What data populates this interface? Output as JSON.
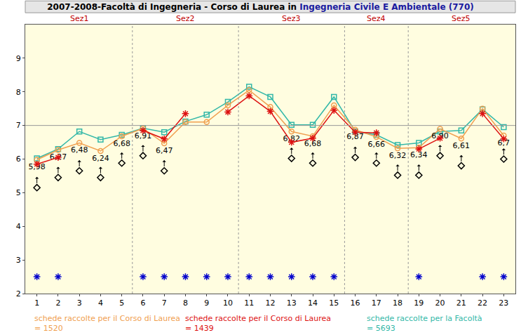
{
  "chart_data": {
    "type": "line",
    "title": "2007-2008-Facoltà di Ingegneria - Corso di Laurea in Ingegneria Civile E Ambientale (770)",
    "title_highlight": "Ingegneria Civile E Ambientale (770)",
    "x": [
      1,
      2,
      3,
      4,
      5,
      6,
      7,
      8,
      9,
      10,
      11,
      12,
      13,
      14,
      15,
      16,
      17,
      18,
      19,
      20,
      21,
      22,
      23
    ],
    "xlim": [
      0.45,
      23.55
    ],
    "xticks": [
      1,
      2,
      3,
      4,
      5,
      6,
      7,
      8,
      9,
      10,
      11,
      12,
      13,
      14,
      15,
      16,
      17,
      18,
      19,
      20,
      21,
      22,
      23
    ],
    "ylim": [
      2,
      10
    ],
    "yticks": [
      2,
      3,
      4,
      5,
      6,
      7,
      8,
      9
    ],
    "grid": false,
    "data_labels": true,
    "reference_line": 7,
    "sections": [
      {
        "label": "Sez1",
        "start": 1,
        "end": 5
      },
      {
        "label": "Sez2",
        "start": 6,
        "end": 10
      },
      {
        "label": "Sez3",
        "start": 11,
        "end": 15
      },
      {
        "label": "Sez4",
        "start": 16,
        "end": 18
      },
      {
        "label": "Sez5",
        "start": 19,
        "end": 23
      }
    ],
    "series": [
      {
        "name": "schede raccolte per la Facoltà = 5693",
        "color": "#33b8a8",
        "marker": "square",
        "line_style": "solid",
        "values": [
          6.02,
          6.3,
          6.82,
          6.58,
          6.72,
          6.92,
          6.8,
          7.12,
          7.32,
          7.7,
          8.15,
          7.85,
          7.02,
          7.02,
          7.85,
          6.82,
          6.72,
          6.42,
          6.48,
          6.82,
          6.85,
          7.48,
          6.95
        ]
      },
      {
        "name": "schede raccolte per il Corso di Laurea = 1520",
        "color": "#f0a050",
        "marker": "circle",
        "line_style": "solid",
        "values": [
          5.98,
          6.27,
          6.48,
          6.24,
          6.68,
          6.91,
          6.47,
          7.1,
          7.1,
          7.6,
          8.05,
          7.55,
          6.82,
          6.68,
          7.6,
          6.87,
          6.66,
          6.32,
          6.34,
          6.9,
          6.61,
          7.5,
          6.7
        ],
        "value_labels": [
          "5,98",
          "6,27",
          "6,48",
          "6,24",
          "6,68",
          "6,91",
          "6,47",
          null,
          null,
          null,
          null,
          null,
          "6,82",
          "6,68",
          null,
          "6,87",
          "6,66",
          "6,32",
          "6,34",
          "6,90",
          "6,61",
          null,
          "6,7"
        ]
      },
      {
        "name": "schede raccolte per il Corso di Laurea = 1439",
        "color": "#dd1111",
        "marker": "asterisk",
        "line_style": "solid",
        "values": [
          5.85,
          6.05,
          null,
          null,
          null,
          6.85,
          6.6,
          7.35,
          null,
          7.4,
          7.88,
          7.42,
          6.5,
          6.62,
          7.45,
          6.8,
          6.78,
          null,
          6.3,
          6.62,
          null,
          7.35,
          6.6
        ]
      },
      {
        "color": "#000000",
        "marker": "diamond",
        "line_style": "none",
        "values": [
          5.15,
          5.45,
          5.65,
          5.45,
          5.88,
          6.1,
          5.65,
          null,
          null,
          null,
          null,
          null,
          6.02,
          5.88,
          null,
          6.05,
          5.88,
          5.52,
          5.52,
          6.1,
          5.8,
          null,
          6.0
        ]
      },
      {
        "color": "#0000cc",
        "marker": "asterisk",
        "line_style": "none",
        "values": [
          2.5,
          2.5,
          null,
          null,
          null,
          2.5,
          2.5,
          2.5,
          2.5,
          2.5,
          2.5,
          2.5,
          2.5,
          2.5,
          2.5,
          null,
          null,
          null,
          2.5,
          null,
          null,
          2.5,
          2.5
        ]
      }
    ]
  }
}
